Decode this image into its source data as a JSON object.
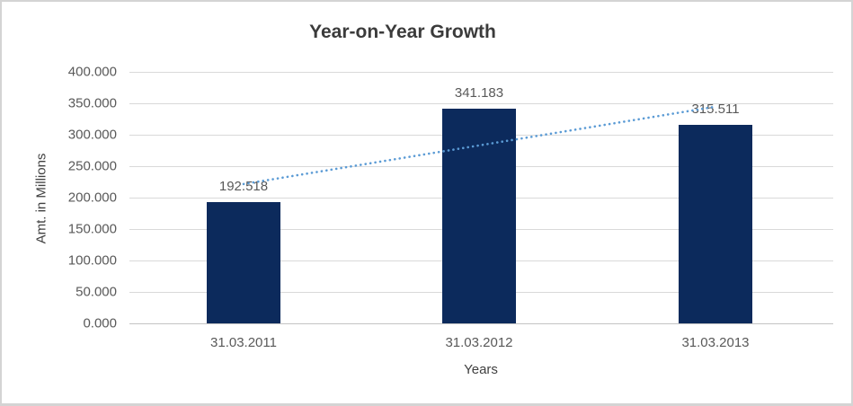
{
  "colors": {
    "bar_fill": "#0c2a5c",
    "trendline": "#5b9bd5",
    "gridline": "#d9d9d9",
    "axis_line": "#c3c3c3",
    "tick_text": "#595959",
    "title_text": "#3b3b3b"
  },
  "chart_data": {
    "type": "bar",
    "title": "Year-on-Year Growth",
    "categories": [
      "31.03.2011",
      "31.03.2012",
      "31.03.2013"
    ],
    "values": [
      192.518,
      341.183,
      315.511
    ],
    "data_labels": [
      "192.518",
      "341.183",
      "315.511"
    ],
    "xlabel": "Years",
    "ylabel": "Amt. in Millions",
    "ylim": [
      0,
      400
    ],
    "ytick_step": 50,
    "ytick_labels": [
      "400.000",
      "350.000",
      "300.000",
      "250.000",
      "200.000",
      "150.000",
      "100.000",
      "50.000",
      "0.000"
    ],
    "grid": true,
    "legend": "none",
    "trendline": {
      "style": "dotted",
      "start_value": 221.6,
      "end_value": 344.6
    }
  }
}
